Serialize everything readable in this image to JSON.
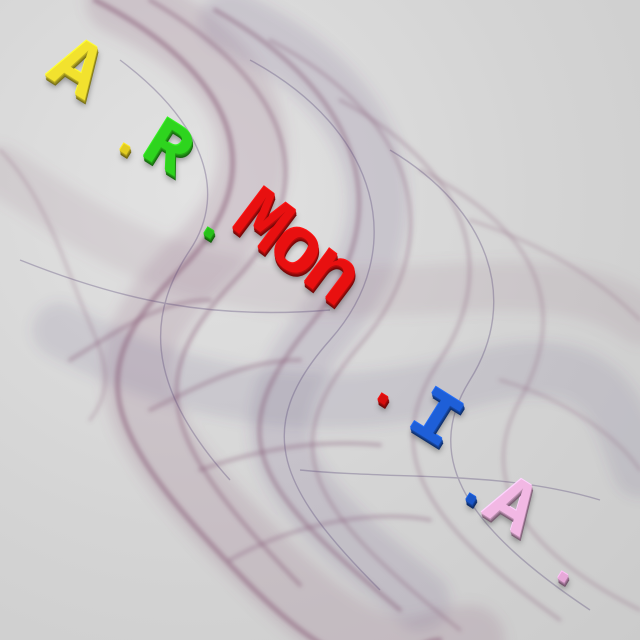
{
  "logo": {
    "letters": [
      "A",
      "R",
      "Mon",
      "I",
      "A"
    ],
    "separator": "."
  },
  "colors": {
    "background": "#d6d6d6",
    "swirl": "#8a5f7a",
    "swirl_shadow": "#5a4a78",
    "letter_a1": "#f2e22e",
    "letter_r": "#2ed41e",
    "letter_mon": "#e81010",
    "letter_i": "#1e5fd8",
    "letter_a2": "#f2b8e4",
    "dots": [
      "#e2cc20",
      "#28c01a",
      "#d80e0e",
      "#1a56c8",
      "#e6a8d8"
    ]
  },
  "icons": {
    "background": "smoke-ribbon-swirl"
  }
}
